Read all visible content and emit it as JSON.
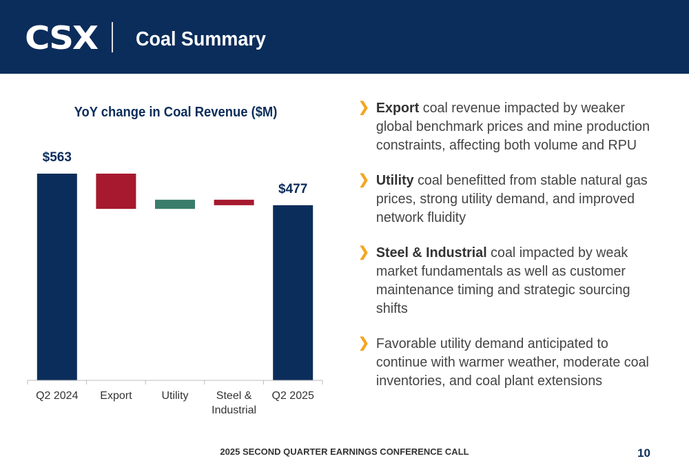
{
  "header": {
    "logo_text": "CSX",
    "title": "Coal Summary",
    "background_color": "#0b2d5b"
  },
  "chart_data": {
    "type": "bar",
    "subtype": "waterfall",
    "title": "YoY change in Coal Revenue ($M)",
    "categories": [
      "Q2 2024",
      "Export",
      "Utility",
      "Steel & Industrial"
    ],
    "category_labels": [
      "Q2 2024",
      "Export",
      "Utility",
      "Steel &\nIndustrial",
      "Q2 2025"
    ],
    "start": {
      "label": "Q2 2024",
      "value": 563,
      "data_label": "$563"
    },
    "changes": [
      {
        "label": "Export",
        "value": -96
      },
      {
        "label": "Utility",
        "value": 25
      },
      {
        "label": "Steel & Industrial",
        "value": -15
      }
    ],
    "end": {
      "label": "Q2 2025",
      "value": 477,
      "data_label": "$477"
    },
    "ylim": [
      0,
      620
    ],
    "grid": false,
    "colors": {
      "total": "#0b2d5b",
      "decrease": "#a6192e",
      "increase": "#3a7d6b"
    }
  },
  "bullets": [
    {
      "bold": "Export",
      "text": " coal revenue impacted by weaker global benchmark prices and mine production constraints, affecting both volume and RPU"
    },
    {
      "bold": "Utility",
      "text": " coal benefitted from stable natural gas prices, strong utility demand, and improved network fluidity"
    },
    {
      "bold": "Steel & Industrial",
      "text": " coal impacted by weak market fundamentals as well as customer maintenance timing and strategic sourcing shifts"
    },
    {
      "bold": "",
      "text": "Favorable utility demand anticipated to continue with warmer weather, moderate coal inventories, and coal plant extensions"
    }
  ],
  "bullet_icon": "chevron-right-icon",
  "accent_color": "#f5a623",
  "footer": {
    "text": "2025 SECOND QUARTER EARNINGS CONFERENCE CALL",
    "page_number": "10"
  }
}
